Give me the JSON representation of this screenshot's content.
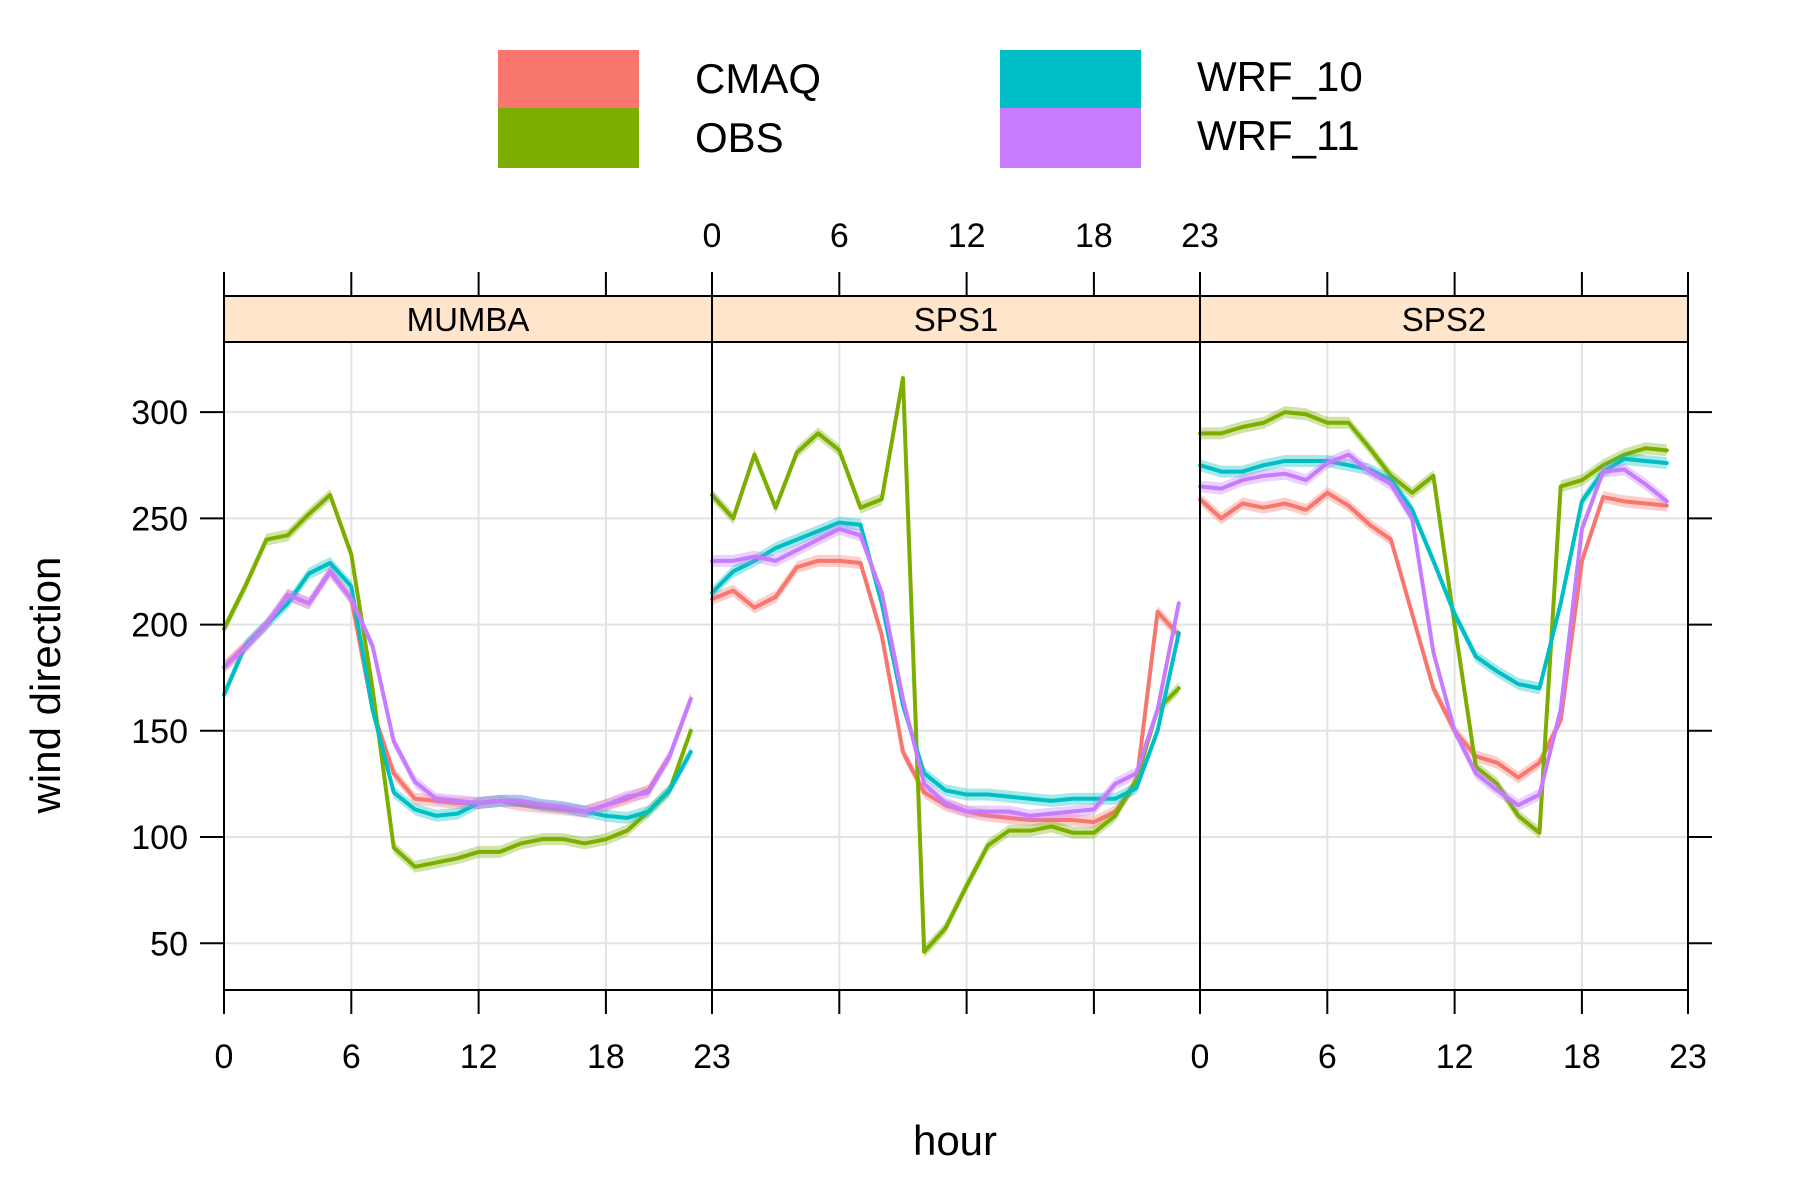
{
  "chart_data": {
    "type": "line",
    "xlabel": "hour",
    "ylabel": "wind direction",
    "x_ticks": [
      0,
      6,
      12,
      18,
      23
    ],
    "y_ticks": [
      50,
      100,
      150,
      200,
      250,
      300
    ],
    "xlim": [
      0,
      23
    ],
    "ylim": [
      28,
      333
    ],
    "grid": true,
    "legend_position": "top",
    "series_order": [
      "CMAQ",
      "OBS",
      "WRF_10",
      "WRF_11"
    ],
    "colors": {
      "CMAQ": "#F8766D",
      "OBS": "#7CAE00",
      "WRF_10": "#00BFC4",
      "WRF_11": "#C77CFF"
    },
    "strip_color": "#FFE5CC",
    "panels": [
      {
        "name": "MUMBA",
        "series": [
          {
            "name": "CMAQ",
            "values": [
              180,
              190,
              200,
              214,
              210,
              225,
              212,
              160,
              130,
              118,
              117,
              116,
              116,
              117,
              115,
              114,
              113,
              112,
              115,
              118,
              122,
              138,
              165
            ]
          },
          {
            "name": "OBS",
            "values": [
              198,
              218,
              240,
              242,
              252,
              261,
              233,
              170,
              95,
              86,
              88,
              90,
              93,
              93,
              97,
              99,
              99,
              97,
              99,
              103,
              112,
              122,
              150
            ]
          },
          {
            "name": "WRF_10",
            "values": [
              167,
              190,
              200,
              210,
              224,
              229,
              218,
              160,
              121,
              113,
              110,
              111,
              116,
              117,
              117,
              115,
              114,
              112,
              110,
              109,
              112,
              122,
              140
            ]
          },
          {
            "name": "WRF_11",
            "values": [
              180,
              189,
              200,
              214,
              210,
              225,
              212,
              190,
              145,
              126,
              118,
              117,
              116,
              117,
              117,
              115,
              114,
              112,
              115,
              119,
              121,
              138,
              165
            ]
          }
        ]
      },
      {
        "name": "SPS1",
        "series": [
          {
            "name": "CMAQ",
            "values": [
              212,
              216,
              208,
              213,
              227,
              230,
              230,
              229,
              195,
              140,
              121,
              115,
              112,
              110,
              109,
              108,
              108,
              108,
              107,
              112,
              125,
              206,
              195
            ]
          },
          {
            "name": "OBS",
            "values": [
              261,
              250,
              280,
              255,
              281,
              290,
              282,
              255,
              259,
              316,
              46,
              57,
              77,
              96,
              103,
              103,
              105,
              102,
              102,
              110,
              127,
              160,
              170
            ]
          },
          {
            "name": "WRF_10",
            "values": [
              215,
              225,
              230,
              236,
              240,
              244,
              248,
              247,
              210,
              162,
              130,
              122,
              120,
              120,
              119,
              118,
              117,
              118,
              118,
              118,
              123,
              150,
              196
            ]
          },
          {
            "name": "WRF_11",
            "values": [
              230,
              230,
              232,
              230,
              235,
              240,
              245,
              242,
              215,
              165,
              125,
              116,
              112,
              112,
              112,
              110,
              111,
              112,
              113,
              125,
              130,
              160,
              210
            ]
          }
        ]
      },
      {
        "name": "SPS2",
        "series": [
          {
            "name": "CMAQ",
            "values": [
              259,
              250,
              257,
              255,
              257,
              254,
              262,
              256,
              247,
              240,
              205,
              170,
              150,
              138,
              135,
              128,
              135,
              155,
              230,
              260,
              258,
              257,
              256
            ]
          },
          {
            "name": "OBS",
            "values": [
              290,
              290,
              293,
              295,
              300,
              299,
              295,
              295,
              283,
              270,
              262,
              270,
              200,
              133,
              125,
              110,
              102,
              265,
              268,
              275,
              280,
              283,
              282
            ]
          },
          {
            "name": "WRF_10",
            "values": [
              275,
              272,
              272,
              275,
              277,
              277,
              277,
              275,
              273,
              268,
              254,
              230,
              205,
              185,
              178,
              172,
              170,
              210,
              258,
              272,
              278,
              277,
              276
            ]
          },
          {
            "name": "WRF_11",
            "values": [
              265,
              264,
              268,
              270,
              271,
              268,
              276,
              280,
              272,
              266,
              250,
              187,
              150,
              130,
              122,
              115,
              120,
              160,
              245,
              272,
              273,
              266,
              258
            ]
          }
        ]
      }
    ]
  }
}
